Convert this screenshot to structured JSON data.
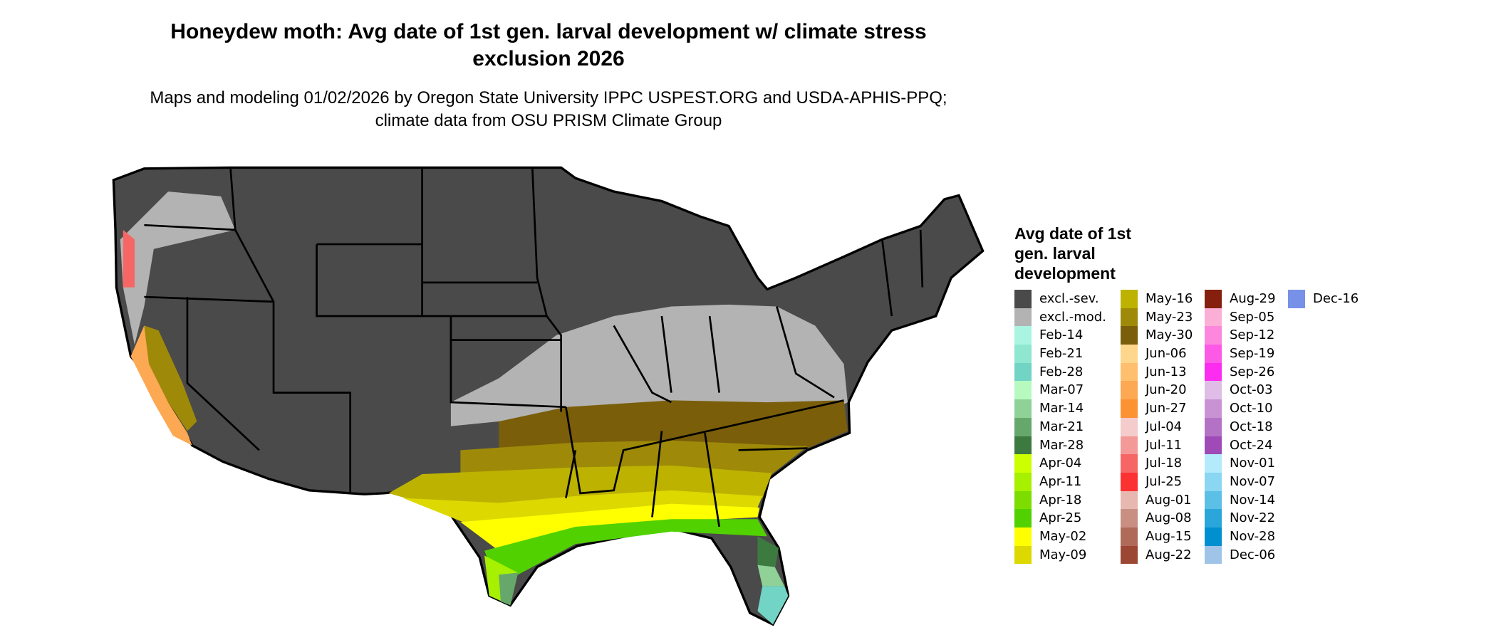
{
  "title": "Honeydew moth: Avg date of 1st gen. larval development w/ climate stress exclusion 2026",
  "subtitle": "Maps and modeling 01/02/2026 by Oregon State University IPPC USPEST.ORG and USDA-APHIS-PPQ; climate data from OSU PRISM Climate Group",
  "legend": {
    "title": "Avg date of 1st gen. larval development",
    "columns": [
      [
        {
          "label": "excl.-sev.",
          "color": "#4a4a4a"
        },
        {
          "label": "excl.-mod.",
          "color": "#b3b3b3"
        },
        {
          "label": "Feb-14",
          "color": "#aaf5e1"
        },
        {
          "label": "Feb-21",
          "color": "#8fe6d1"
        },
        {
          "label": "Feb-28",
          "color": "#72d4c4"
        },
        {
          "label": "Mar-07",
          "color": "#b7fac0"
        },
        {
          "label": "Mar-14",
          "color": "#8fd196"
        },
        {
          "label": "Mar-21",
          "color": "#66a86b"
        },
        {
          "label": "Mar-28",
          "color": "#3d7a40"
        },
        {
          "label": "Apr-04",
          "color": "#ccff00"
        },
        {
          "label": "Apr-11",
          "color": "#a6f000"
        },
        {
          "label": "Apr-18",
          "color": "#7ddd00"
        },
        {
          "label": "Apr-25",
          "color": "#52d100"
        },
        {
          "label": "May-02",
          "color": "#ffff00"
        },
        {
          "label": "May-09",
          "color": "#dcd800"
        }
      ],
      [
        {
          "label": "May-16",
          "color": "#bdb200"
        },
        {
          "label": "May-23",
          "color": "#9e8a08"
        },
        {
          "label": "May-30",
          "color": "#7a5e0a"
        },
        {
          "label": "Jun-06",
          "color": "#fed68c"
        },
        {
          "label": "Jun-13",
          "color": "#fec06e"
        },
        {
          "label": "Jun-20",
          "color": "#fda852"
        },
        {
          "label": "Jun-27",
          "color": "#fc9232"
        },
        {
          "label": "Jul-04",
          "color": "#f4cccc"
        },
        {
          "label": "Jul-11",
          "color": "#f39a98"
        },
        {
          "label": "Jul-18",
          "color": "#f66665"
        },
        {
          "label": "Jul-25",
          "color": "#fc3232"
        },
        {
          "label": "Aug-01",
          "color": "#e6b8b0"
        },
        {
          "label": "Aug-08",
          "color": "#c98f83"
        },
        {
          "label": "Aug-15",
          "color": "#b06a5a"
        },
        {
          "label": "Aug-22",
          "color": "#9c4634"
        }
      ],
      [
        {
          "label": "Aug-29",
          "color": "#86200e"
        },
        {
          "label": "Sep-05",
          "color": "#fcafd6"
        },
        {
          "label": "Sep-12",
          "color": "#fc87dc"
        },
        {
          "label": "Sep-19",
          "color": "#fc5ae6"
        },
        {
          "label": "Sep-26",
          "color": "#fc2cf0"
        },
        {
          "label": "Oct-03",
          "color": "#dfbde6"
        },
        {
          "label": "Oct-10",
          "color": "#c993d3"
        },
        {
          "label": "Oct-18",
          "color": "#b472c6"
        },
        {
          "label": "Oct-24",
          "color": "#9f4ab6"
        },
        {
          "label": "Nov-01",
          "color": "#b3ebfc"
        },
        {
          "label": "Nov-07",
          "color": "#8ad6f3"
        },
        {
          "label": "Nov-14",
          "color": "#5bbfe6"
        },
        {
          "label": "Nov-22",
          "color": "#2ba6da"
        },
        {
          "label": "Nov-28",
          "color": "#0090d0"
        },
        {
          "label": "Dec-06",
          "color": "#a0c4e8"
        }
      ],
      [
        {
          "label": "Dec-16",
          "color": "#7791e8"
        }
      ]
    ]
  }
}
